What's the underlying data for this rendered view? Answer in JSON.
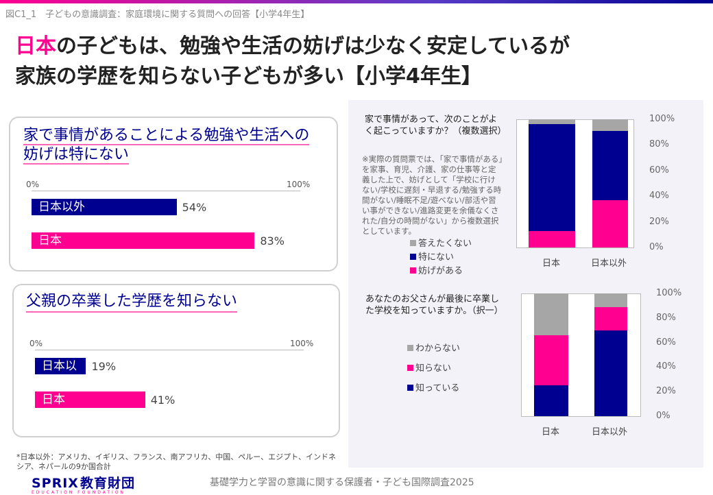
{
  "figure_label": "図C1_1　子どもの意識調査：家庭環境に関する質問への回答【小学4年生】",
  "title": {
    "accent": "日本",
    "line1_rest": "の子どもは、勉強や生活の妨げは少なく安定しているが",
    "line2": "家族の学歴を知らない子どもが多い【小学4年生】"
  },
  "colors": {
    "navy": "#000090",
    "pink": "#ff0090",
    "gray": "#a6a6a6"
  },
  "chart_data": [
    {
      "type": "bar",
      "orientation": "horizontal",
      "title": "家で事情があることによる勉強や生活への妨げは特にない",
      "xlim": [
        0,
        100
      ],
      "tick_labels": [
        "0%",
        "100%"
      ],
      "categories": [
        "日本以外",
        "日本"
      ],
      "values": [
        54,
        83
      ],
      "value_labels": [
        "54%",
        "83%"
      ],
      "colors": [
        "#000090",
        "#ff0090"
      ]
    },
    {
      "type": "bar",
      "orientation": "horizontal",
      "title": "父親の卒業した学歴を知らない",
      "xlim": [
        0,
        100
      ],
      "tick_labels": [
        "0%",
        "100%"
      ],
      "categories": [
        "日本以外",
        "日本"
      ],
      "values": [
        19,
        41
      ],
      "value_labels": [
        "19%",
        "41%"
      ],
      "colors": [
        "#000090",
        "#ff0090"
      ]
    },
    {
      "type": "bar",
      "stacked": true,
      "question": "家で事情があって、次のことがよく起こっていますか？（複数選択）",
      "note": "※実際の質問票では、「家で事情がある」を家事、育児、介護、家の仕事等と定義した上で、妨げとして「学校に行けない/学校に遅刻・早退する/勉強する時間がない/睡眠不足/遊べない/部活や習い事ができない/進路変更を余儀なくされた/自分の時間がない」から複数選択としています。",
      "categories": [
        "日本",
        "日本以外"
      ],
      "ylim": [
        0,
        100
      ],
      "yticks": [
        "0%",
        "20%",
        "40%",
        "60%",
        "80%",
        "100%"
      ],
      "legend_position": "left",
      "series": [
        {
          "name": "妨げがある",
          "values": [
            13,
            37
          ],
          "color": "#ff0090"
        },
        {
          "name": "特にない",
          "values": [
            83,
            54
          ],
          "color": "#000090"
        },
        {
          "name": "答えたくない",
          "values": [
            4,
            9
          ],
          "color": "#a6a6a6"
        }
      ]
    },
    {
      "type": "bar",
      "stacked": true,
      "question": "あなたのお父さんが最後に卒業した学校を知っていますか。（択一）",
      "categories": [
        "日本",
        "日本以外"
      ],
      "ylim": [
        0,
        100
      ],
      "yticks": [
        "0%",
        "20%",
        "40%",
        "60%",
        "80%",
        "100%"
      ],
      "legend_position": "left",
      "series": [
        {
          "name": "知っている",
          "values": [
            25,
            70
          ],
          "color": "#000090"
        },
        {
          "name": "知らない",
          "values": [
            41,
            19
          ],
          "color": "#ff0090"
        },
        {
          "name": "わからない",
          "values": [
            34,
            11
          ],
          "color": "#a6a6a6"
        }
      ]
    }
  ],
  "footnote": "*日本以外：アメリカ、イギリス、フランス、南アフリカ、中国、ペルー、エジプト、インドネシア、ネパールの9か国合計",
  "logo": {
    "main": "SPRIX",
    "kanji": "教育財団",
    "sub": "EDUCATION FOUNDATION"
  },
  "survey_name": "基礎学力と学習の意識に関する保護者・子ども国際調査2025"
}
